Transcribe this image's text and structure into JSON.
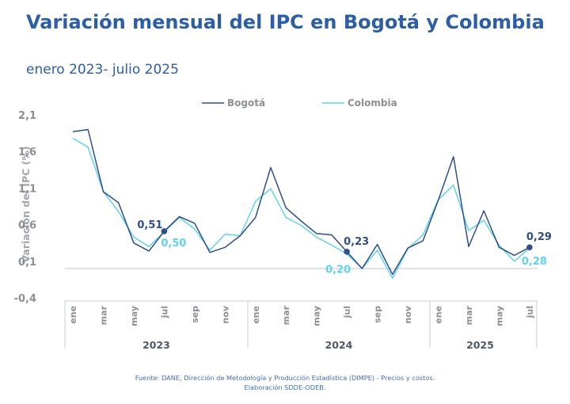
{
  "header": {
    "title": "Variación mensual del IPC en Bogotá y Colombia",
    "subtitle": "enero 2023- julio 2025"
  },
  "footer": {
    "source": "Fuente: DANE, Dirección de Metodología y Producción Estadística (DIMPE) - Precios y costos.",
    "credit": "Elaboración SDDE-ODEB."
  },
  "colors": {
    "title": "#2c5ea8",
    "bogota": "#2f4f8a",
    "colombia": "#5fd2ee",
    "axis_text": "#8c9096",
    "year_text": "#4d5a6a"
  },
  "chart_data": {
    "type": "line",
    "legend_position": "top-center",
    "ylabel": "Variación del IPC (%)",
    "ylim": [
      -0.4,
      2.1
    ],
    "yticks": [
      "2,1",
      "1,6",
      "1,1",
      "0,6",
      "0,1",
      "-0,4"
    ],
    "x": [
      "ene 2023",
      "feb 2023",
      "mar 2023",
      "abr 2023",
      "may 2023",
      "jun 2023",
      "jul 2023",
      "ago 2023",
      "sep 2023",
      "oct 2023",
      "nov 2023",
      "dic 2023",
      "ene 2024",
      "feb 2024",
      "mar 2024",
      "abr 2024",
      "may 2024",
      "jun 2024",
      "jul 2024",
      "ago 2024",
      "sep 2024",
      "oct 2024",
      "nov 2024",
      "dic 2024",
      "ene 2025",
      "feb 2025",
      "mar 2025",
      "abr 2025",
      "may 2025",
      "jun 2025",
      "jul 2025"
    ],
    "month_labels": [
      {
        "i": 0,
        "label": "ene"
      },
      {
        "i": 2,
        "label": "mar"
      },
      {
        "i": 4,
        "label": "may"
      },
      {
        "i": 6,
        "label": "jul"
      },
      {
        "i": 8,
        "label": "sep"
      },
      {
        "i": 10,
        "label": "nov"
      },
      {
        "i": 12,
        "label": "ene"
      },
      {
        "i": 14,
        "label": "mar"
      },
      {
        "i": 16,
        "label": "may"
      },
      {
        "i": 18,
        "label": "jul"
      },
      {
        "i": 20,
        "label": "sep"
      },
      {
        "i": 22,
        "label": "nov"
      },
      {
        "i": 24,
        "label": "ene"
      },
      {
        "i": 26,
        "label": "mar"
      },
      {
        "i": 28,
        "label": "may"
      },
      {
        "i": 30,
        "label": "jul"
      }
    ],
    "years": [
      {
        "label": "2023",
        "start": 0,
        "end": 11
      },
      {
        "label": "2024",
        "start": 12,
        "end": 23
      },
      {
        "label": "2025",
        "start": 24,
        "end": 30
      }
    ],
    "series": [
      {
        "name": "Bogotá",
        "values": [
          1.87,
          1.9,
          1.05,
          0.9,
          0.35,
          0.24,
          0.51,
          0.71,
          0.62,
          0.22,
          0.29,
          0.45,
          0.7,
          1.38,
          0.83,
          0.65,
          0.48,
          0.46,
          0.23,
          0.0,
          0.33,
          -0.08,
          0.28,
          0.38,
          0.93,
          1.53,
          0.3,
          0.79,
          0.29,
          0.18,
          0.29
        ],
        "annotations": [
          {
            "i": 6,
            "label": "0,51"
          },
          {
            "i": 18,
            "label": "0,23"
          },
          {
            "i": 30,
            "label": "0,29"
          }
        ]
      },
      {
        "name": "Colombia",
        "values": [
          1.78,
          1.66,
          1.05,
          0.78,
          0.43,
          0.3,
          0.5,
          0.7,
          0.54,
          0.25,
          0.47,
          0.45,
          0.92,
          1.09,
          0.7,
          0.59,
          0.43,
          0.32,
          0.2,
          0.0,
          0.25,
          -0.13,
          0.27,
          0.46,
          0.94,
          1.14,
          0.52,
          0.66,
          0.32,
          0.1,
          0.28
        ],
        "annotations": [
          {
            "i": 6,
            "label": "0,50"
          },
          {
            "i": 18,
            "label": "0,20"
          },
          {
            "i": 30,
            "label": "0,28"
          }
        ]
      }
    ]
  }
}
